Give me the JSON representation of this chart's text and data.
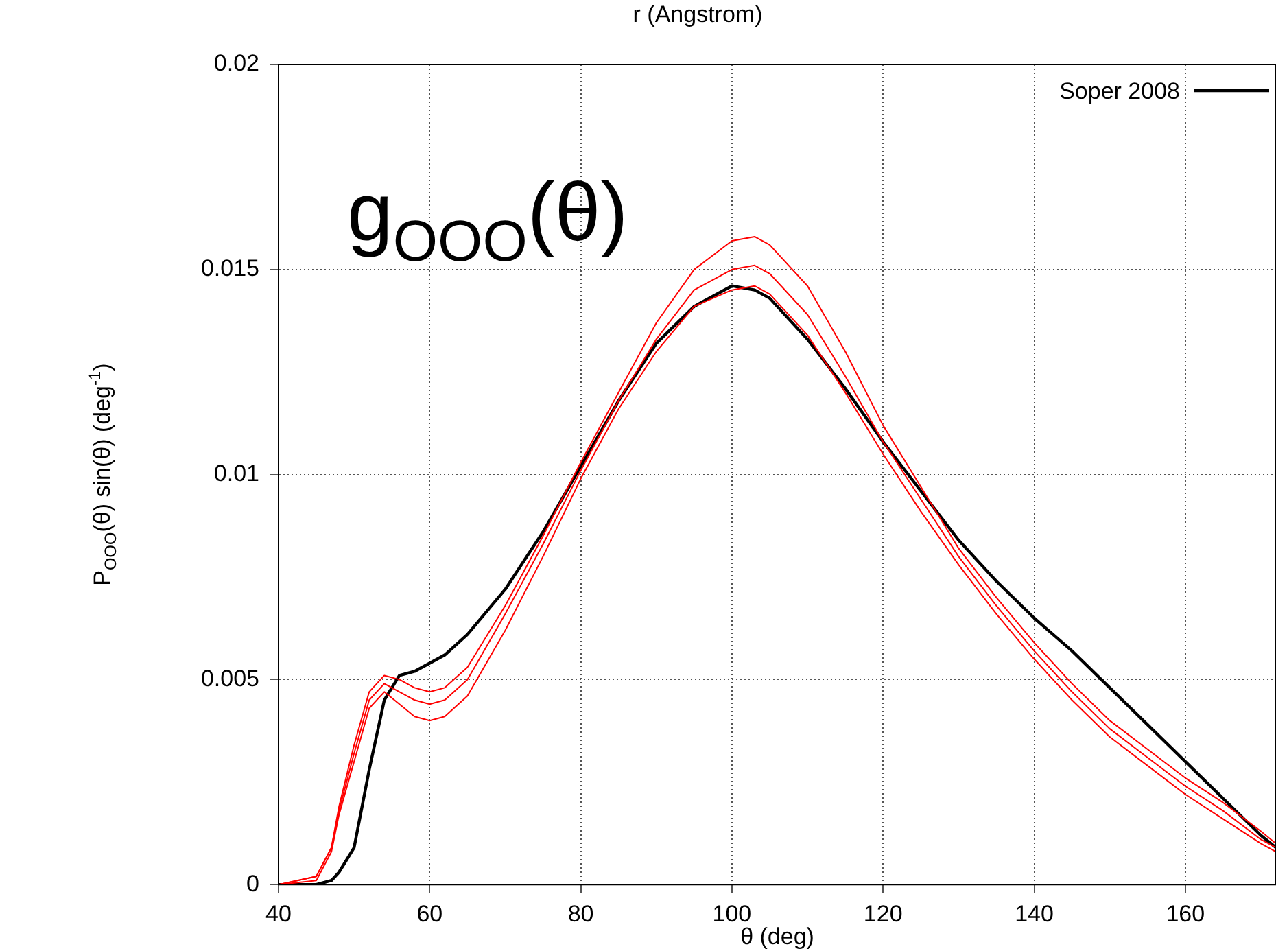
{
  "chart_data": {
    "type": "line",
    "xlabel": "θ (deg)",
    "ylabel": "P$_{OOO}$(θ) sin(θ) (deg$^{-1}$)",
    "annotations": [
      "r (Angstrom)",
      "g$_{OOO}$(θ)"
    ],
    "x": [
      40,
      45,
      47,
      48,
      50,
      52,
      54,
      56,
      58,
      60,
      62,
      65,
      70,
      75,
      80,
      85,
      90,
      95,
      100,
      103,
      105,
      110,
      115,
      120,
      125,
      130,
      135,
      140,
      145,
      150,
      155,
      160,
      165,
      170,
      172
    ],
    "series": [
      {
        "color": "#ff0000",
        "values": [
          0,
          0.0002,
          0.0009,
          0.0019,
          0.0034,
          0.0047,
          0.0051,
          0.005,
          0.0048,
          0.0047,
          0.0048,
          0.0053,
          0.0068,
          0.0085,
          0.0103,
          0.012,
          0.0137,
          0.015,
          0.0157,
          0.0158,
          0.0156,
          0.0146,
          0.013,
          0.0112,
          0.0097,
          0.0082,
          0.007,
          0.0059,
          0.0049,
          0.004,
          0.0033,
          0.0026,
          0.002,
          0.0013,
          0.001
        ]
      },
      {
        "color": "#ff0000",
        "values": [
          0,
          0.0002,
          0.0009,
          0.0018,
          0.0032,
          0.0045,
          0.0049,
          0.0047,
          0.0045,
          0.0044,
          0.0045,
          0.005,
          0.0066,
          0.0083,
          0.0101,
          0.0118,
          0.0133,
          0.0145,
          0.015,
          0.0151,
          0.0149,
          0.0139,
          0.0124,
          0.0108,
          0.0094,
          0.008,
          0.0068,
          0.0057,
          0.0047,
          0.0038,
          0.0031,
          0.0024,
          0.0018,
          0.0011,
          0.0009
        ]
      },
      {
        "color": "#ff0000",
        "values": [
          0,
          0.0001,
          0.0008,
          0.0017,
          0.003,
          0.0043,
          0.0047,
          0.0044,
          0.0041,
          0.004,
          0.0041,
          0.0046,
          0.0062,
          0.008,
          0.0099,
          0.0116,
          0.013,
          0.0141,
          0.0145,
          0.0146,
          0.0144,
          0.0134,
          0.012,
          0.0105,
          0.0091,
          0.0078,
          0.0066,
          0.0055,
          0.0045,
          0.0036,
          0.0029,
          0.0022,
          0.0016,
          0.001,
          0.0008
        ]
      },
      {
        "name": "Soper 2008",
        "color": "#000000",
        "values": [
          0,
          0,
          0.0001,
          0.0003,
          0.0009,
          0.0028,
          0.0045,
          0.0051,
          0.0052,
          0.0054,
          0.0056,
          0.0061,
          0.0072,
          0.0086,
          0.0102,
          0.0118,
          0.0132,
          0.0141,
          0.0146,
          0.0145,
          0.0143,
          0.0133,
          0.0121,
          0.0108,
          0.0096,
          0.0084,
          0.0074,
          0.0065,
          0.0057,
          0.0048,
          0.0039,
          0.003,
          0.0021,
          0.0012,
          0.0009
        ]
      }
    ],
    "xlim": [
      40,
      172
    ],
    "xticks": [
      40,
      60,
      80,
      100,
      120,
      140,
      160
    ],
    "ylim": [
      0,
      0.02
    ],
    "yticks": [
      0,
      0.005,
      0.01,
      0.015,
      0.02
    ],
    "grid": true,
    "legend": "top right",
    "marker": "none",
    "line_style": "solid"
  }
}
